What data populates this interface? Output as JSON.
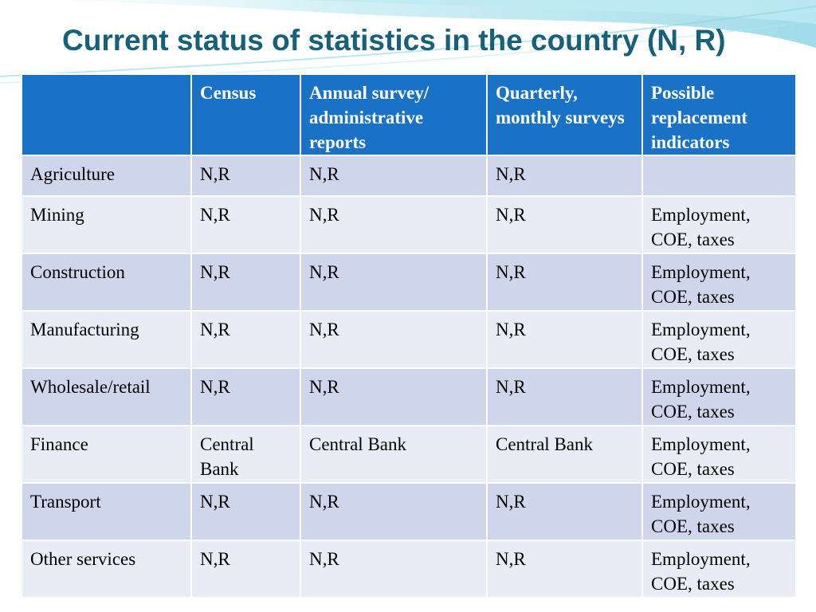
{
  "slide": {
    "title": "Current status of statistics in the country (N, R)"
  },
  "table": {
    "headers": [
      "",
      "Census",
      "Annual survey/ administrative reports",
      "Quarterly, monthly surveys",
      "Possible replacement indicators"
    ],
    "rows": [
      [
        "Agriculture",
        "N,R",
        "N,R",
        "N,R",
        ""
      ],
      [
        "Mining",
        "N,R",
        "N,R",
        "N,R",
        "Employment, COE, taxes"
      ],
      [
        "Construction",
        "N,R",
        "N,R",
        "N,R",
        "Employment, COE, taxes"
      ],
      [
        "Manufacturing",
        "N,R",
        "N,R",
        "N,R",
        "Employment, COE, taxes"
      ],
      [
        "Wholesale/retail",
        "N,R",
        "N,R",
        "N,R",
        "Employment, COE, taxes"
      ],
      [
        "Finance",
        "Central Bank",
        "Central Bank",
        "Central Bank",
        "Employment, COE, taxes"
      ],
      [
        "Transport",
        "N,R",
        "N,R",
        "N,R",
        "Employment, COE, taxes"
      ],
      [
        "Other services",
        "N,R",
        "N,R",
        "N,R",
        "Employment, COE, taxes"
      ]
    ]
  },
  "colors": {
    "title": "#17607a",
    "header_bg": "#1a72c6",
    "row_band_dark": "#cfd5ea",
    "row_band_light": "#e9ecf5",
    "wave": "#5ec8dc"
  }
}
